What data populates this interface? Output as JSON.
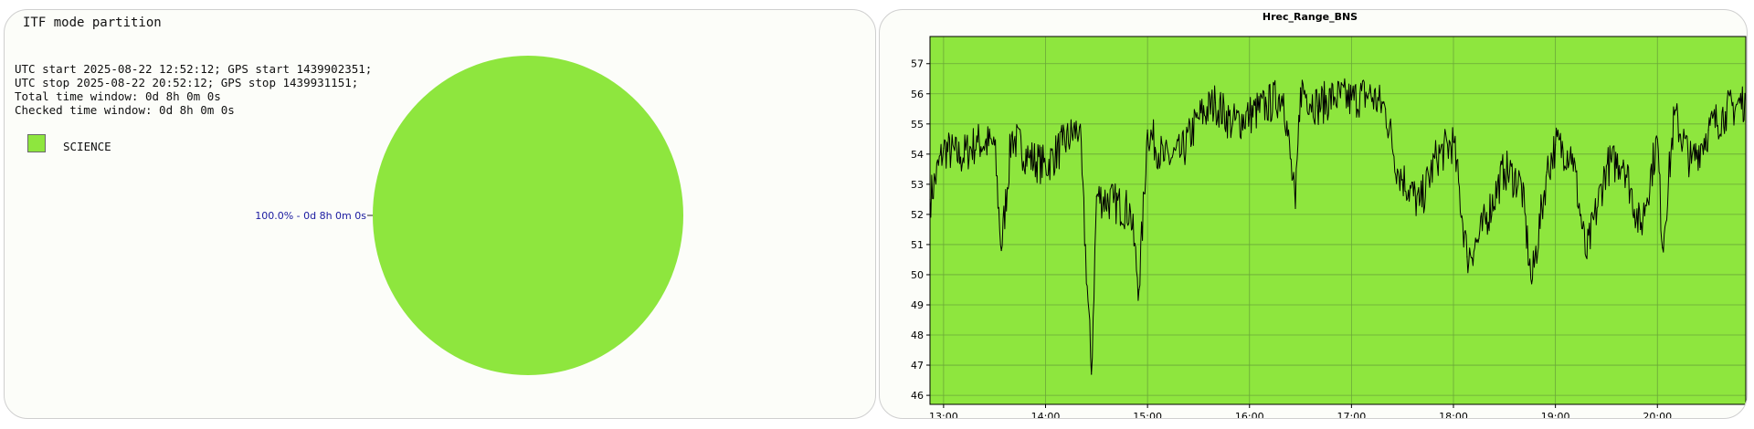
{
  "colors": {
    "science": "#8ee63e",
    "label": "#1a1aa0",
    "grid": "#6aa838",
    "line": "#000000"
  },
  "left_panel": {
    "title": "ITF mode partition",
    "info_lines": [
      "UTC start 2025-08-22 12:52:12; GPS start 1439902351;",
      "UTC stop 2025-08-22 20:52:12; GPS stop 1439931151;",
      "Total time window: 0d 8h 0m 0s",
      "Checked time window: 0d 8h 0m 0s"
    ],
    "legend": [
      {
        "label": "SCIENCE"
      }
    ]
  },
  "chart_data": [
    {
      "type": "pie",
      "slices": [
        {
          "name": "SCIENCE",
          "percent": 100.0,
          "duration": "0d 8h 0m 0s"
        }
      ],
      "slice_labels": [
        "100.0% - 0d 8h 0m 0s"
      ]
    },
    {
      "type": "line",
      "title": "Hrec_Range_BNS",
      "xlabel": "",
      "ylabel": "",
      "x_ticks": [
        "13:00",
        "14:00",
        "15:00",
        "16:00",
        "17:00",
        "18:00",
        "19:00",
        "20:00"
      ],
      "y_ticks": [
        46,
        47,
        48,
        49,
        50,
        51,
        52,
        53,
        54,
        55,
        56,
        57
      ],
      "xlim": [
        "12:52",
        "20:52"
      ],
      "ylim": [
        45.7,
        57.9
      ],
      "grid": true,
      "x": [
        "12:52",
        "13:00",
        "13:10",
        "13:20",
        "13:30",
        "13:34",
        "13:40",
        "13:50",
        "14:00",
        "14:10",
        "14:20",
        "14:27",
        "14:30",
        "14:40",
        "14:50",
        "14:55",
        "15:00",
        "15:10",
        "15:20",
        "15:30",
        "15:40",
        "15:50",
        "16:00",
        "16:10",
        "16:20",
        "16:27",
        "16:30",
        "16:40",
        "16:50",
        "17:00",
        "17:10",
        "17:20",
        "17:27",
        "17:40",
        "17:50",
        "18:00",
        "18:08",
        "18:15",
        "18:30",
        "18:40",
        "18:46",
        "18:55",
        "19:00",
        "19:10",
        "19:18",
        "19:30",
        "19:40",
        "19:50",
        "20:00",
        "20:03",
        "20:10",
        "20:20",
        "20:30",
        "20:40",
        "20:52"
      ],
      "values": [
        52.5,
        54.2,
        53.9,
        54.4,
        54.3,
        50.8,
        54.6,
        53.9,
        53.6,
        54.3,
        54.9,
        46.7,
        52.6,
        52.4,
        52.1,
        49.5,
        54.8,
        53.8,
        54.0,
        55.2,
        55.7,
        55.0,
        55.3,
        55.6,
        56.0,
        52.2,
        56.2,
        55.6,
        55.9,
        55.8,
        56.0,
        55.5,
        53.5,
        52.3,
        53.9,
        54.4,
        50.6,
        51.2,
        53.5,
        53.0,
        49.7,
        53.4,
        54.3,
        54.0,
        50.6,
        53.6,
        53.8,
        51.5,
        54.5,
        50.9,
        55.3,
        53.7,
        54.8,
        55.4,
        55.8
      ]
    }
  ]
}
